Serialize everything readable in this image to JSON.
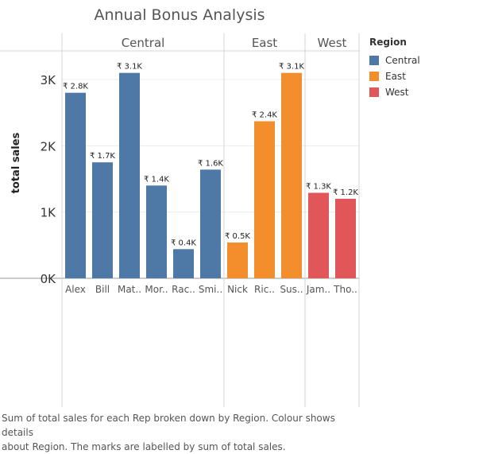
{
  "chart_data": {
    "type": "bar",
    "title": "Annual Bonus Analysis",
    "ylabel": "total sales",
    "xlabel": "",
    "ylim": [
      0,
      3300
    ],
    "yticks": [
      {
        "value": 0,
        "label": "0K"
      },
      {
        "value": 1000,
        "label": "1K"
      },
      {
        "value": 2000,
        "label": "2K"
      },
      {
        "value": 3000,
        "label": "3K"
      }
    ],
    "groups": [
      {
        "name": "Central",
        "color": "#4e79a7",
        "bars": [
          {
            "category": "Alex",
            "value": 2800,
            "label": "₹ 2.8K"
          },
          {
            "category": "Bill",
            "value": 1750,
            "label": "₹ 1.7K"
          },
          {
            "category": "Mat..",
            "value": 3100,
            "label": "₹ 3.1K"
          },
          {
            "category": "Mor..",
            "value": 1400,
            "label": "₹ 1.4K"
          },
          {
            "category": "Rac..",
            "value": 440,
            "label": "₹ 0.4K"
          },
          {
            "category": "Smi..",
            "value": 1640,
            "label": "₹ 1.6K"
          }
        ]
      },
      {
        "name": "East",
        "color": "#f28e2b",
        "bars": [
          {
            "category": "Nick",
            "value": 540,
            "label": "₹ 0.5K"
          },
          {
            "category": "Ric..",
            "value": 2370,
            "label": "₹ 2.4K"
          },
          {
            "category": "Sus..",
            "value": 3100,
            "label": "₹ 3.1K"
          }
        ]
      },
      {
        "name": "West",
        "color": "#e15759",
        "bars": [
          {
            "category": "Jam..",
            "value": 1290,
            "label": "₹ 1.3K"
          },
          {
            "category": "Tho..",
            "value": 1200,
            "label": "₹ 1.2K"
          }
        ]
      }
    ],
    "legend": {
      "title": "Region",
      "position": "right",
      "items": [
        {
          "label": "Central",
          "color": "#4e79a7"
        },
        {
          "label": "East",
          "color": "#f28e2b"
        },
        {
          "label": "West",
          "color": "#e15759"
        }
      ]
    },
    "grid": true
  },
  "caption": {
    "line1": "Sum of total sales for each Rep broken down by Region. Colour shows details",
    "line2": "about Region. The marks are labelled by sum of total sales."
  }
}
